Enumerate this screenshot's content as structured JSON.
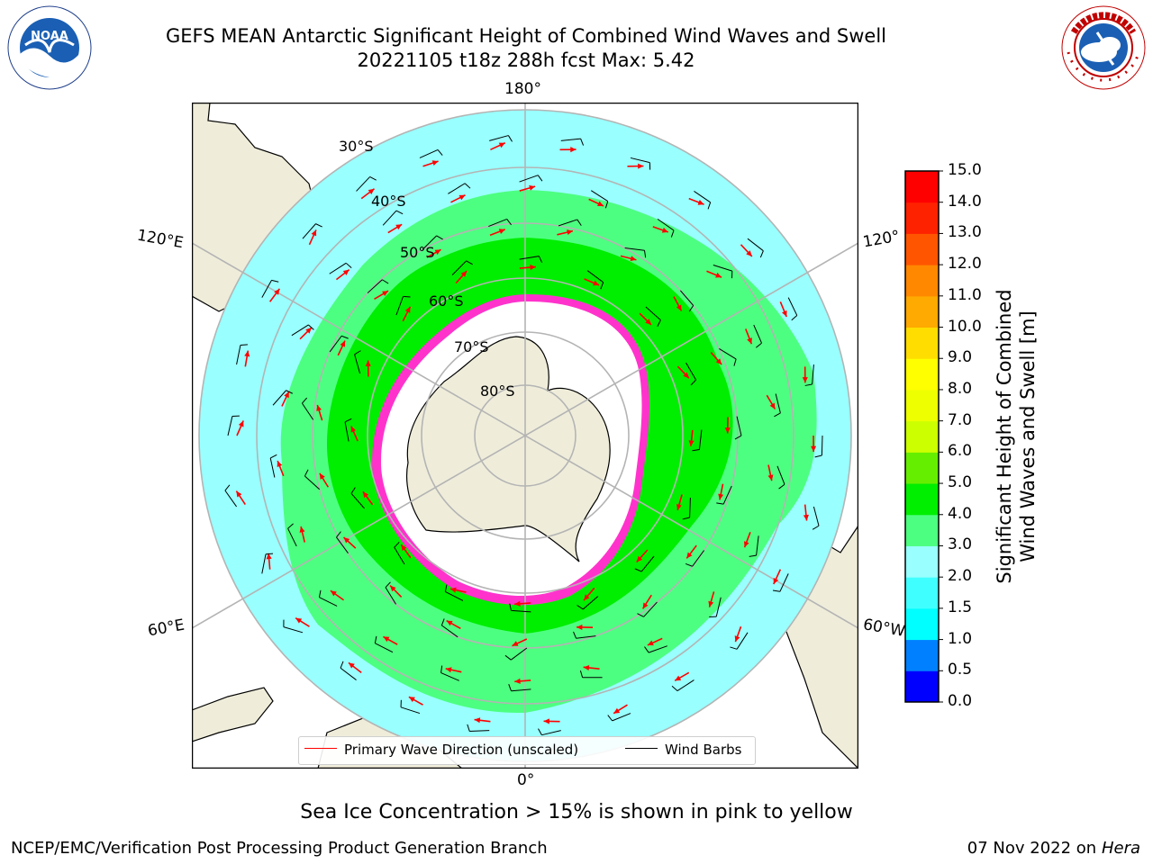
{
  "header": {
    "title_line1": "GEFS MEAN Antarctic Significant Height of Combined Wind Waves and Swell",
    "title_line2": "20221105 t18z 288h fcst   Max: 5.42"
  },
  "logos": {
    "left": {
      "icon": "noaa-logo-icon",
      "text": "NOAA",
      "ring_text": "NATIONAL OCEANIC AND ATMOSPHERIC ADMINISTRATION · U.S. DEPARTMENT OF COMMERCE"
    },
    "right": {
      "icon": "nws-logo-icon",
      "ring_text": "NATIONAL WEATHER SERVICE"
    }
  },
  "map": {
    "projection": "south-polar-stereographic",
    "lon_labels": {
      "top": "180°",
      "bottom": "0°",
      "upper_left": "120°E",
      "lower_left": "60°E",
      "upper_right": "120°",
      "lower_right": "60°W"
    },
    "lat_labels": [
      "30°S",
      "40°S",
      "50°S",
      "60°S",
      "70°S",
      "80°S"
    ],
    "colors": {
      "land": "#efedda",
      "ocean_no_data": "#ffffff",
      "sea_ice": "#ff33cc",
      "wave_arrow": "#ff0000",
      "wind_barb": "#000000",
      "gridline": "#b4b4b4"
    }
  },
  "colorbar": {
    "label_line1": "Significant Height of Combined",
    "label_line2": "Wind Waves and Swell [m]",
    "ticks": [
      "15.0",
      "14.0",
      "13.0",
      "12.0",
      "11.0",
      "10.0",
      "9.0",
      "8.0",
      "7.0",
      "6.0",
      "5.0",
      "4.0",
      "3.0",
      "2.0",
      "1.5",
      "1.0",
      "0.5",
      "0.0"
    ],
    "levels": [
      0.0,
      0.5,
      1.0,
      1.5,
      2.0,
      3.0,
      4.0,
      5.0,
      6.0,
      7.0,
      8.0,
      9.0,
      10.0,
      11.0,
      12.0,
      13.0,
      14.0,
      15.0
    ],
    "colors": [
      "#0000ff",
      "#0080ff",
      "#00ffff",
      "#40ffff",
      "#99ffff",
      "#4dff80",
      "#00ee00",
      "#66ee00",
      "#ccff00",
      "#eeff00",
      "#ffff00",
      "#ffdd00",
      "#ffaa00",
      "#ff8800",
      "#ff5500",
      "#ff2200",
      "#ff0000"
    ]
  },
  "legend": {
    "wave_label": "Primary Wave Direction (unscaled)",
    "wind_label": "Wind Barbs"
  },
  "caption": "Sea Ice Concentration > 15% is shown in pink to yellow",
  "footer": {
    "left": "NCEP/EMC/Verification Post Processing Product Generation Branch",
    "date": "07 Nov 2022 on",
    "host": "Hera"
  }
}
